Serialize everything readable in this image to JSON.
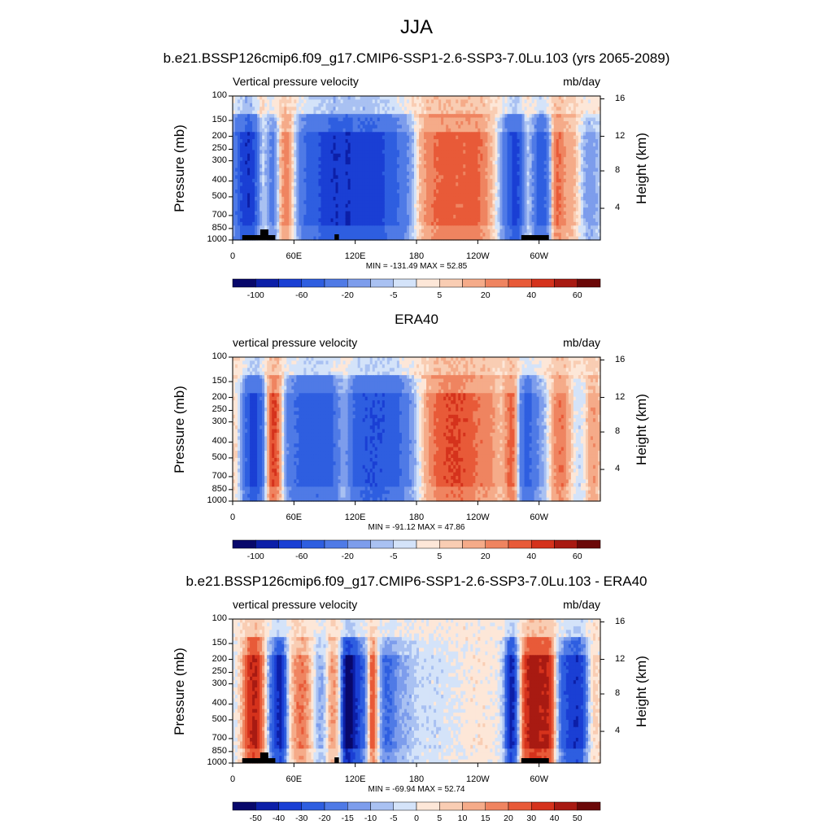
{
  "main_title": "JJA",
  "chart_data": [
    {
      "type": "heatmap",
      "title": "b.e21.BSSP126cmip6.f09_g17.CMIP6-SSP1-2.6-SSP3-7.0Lu.103 (yrs 2065-2089)",
      "left_string": "Vertical pressure velocity",
      "units": "mb/day",
      "ylabel": "Pressure (mb)",
      "y2label": "Height (km)",
      "pressure_ticks": [
        "100",
        "150",
        "200",
        "250",
        "300",
        "400",
        "500",
        "700",
        "850",
        "1000"
      ],
      "height_ticks": [
        "4",
        "8",
        "12",
        "16"
      ],
      "x_ticks": [
        "0",
        "60E",
        "120E",
        "180",
        "120W",
        "60W"
      ],
      "min_max": "MIN = -131.49  MAX =  52.85",
      "colorbar_labels": [
        "-100",
        "-60",
        "-20",
        "-5",
        "5",
        "20",
        "40",
        "60"
      ],
      "approx_columns": [
        [
          5,
          -30
        ],
        [
          15,
          -60
        ],
        [
          25,
          30
        ],
        [
          35,
          -40
        ],
        [
          45,
          40
        ],
        [
          55,
          -10
        ],
        [
          75,
          -5
        ],
        [
          85,
          -5
        ],
        [
          95,
          -10
        ],
        [
          105,
          -15
        ],
        [
          115,
          -20
        ],
        [
          125,
          -40
        ],
        [
          135,
          -40
        ],
        [
          145,
          -50
        ],
        [
          155,
          -40
        ],
        [
          165,
          -30
        ],
        [
          175,
          -20
        ],
        [
          185,
          10
        ],
        [
          195,
          20
        ],
        [
          205,
          20
        ],
        [
          215,
          30
        ],
        [
          225,
          30
        ],
        [
          235,
          30
        ],
        [
          245,
          20
        ],
        [
          255,
          10
        ],
        [
          265,
          -10
        ],
        [
          275,
          -60
        ],
        [
          285,
          -50
        ],
        [
          295,
          20
        ],
        [
          305,
          10
        ],
        [
          315,
          30
        ],
        [
          325,
          5
        ],
        [
          335,
          5
        ],
        [
          345,
          5
        ],
        [
          355,
          -20
        ]
      ]
    },
    {
      "type": "heatmap",
      "title": "ERA40",
      "left_string": "vertical pressure velocity",
      "units": "mb/day",
      "ylabel": "Pressure (mb)",
      "y2label": "Height (km)",
      "pressure_ticks": [
        "100",
        "150",
        "200",
        "250",
        "300",
        "400",
        "500",
        "700",
        "850",
        "1000"
      ],
      "height_ticks": [
        "4",
        "8",
        "12",
        "16"
      ],
      "x_ticks": [
        "0",
        "60E",
        "120E",
        "180",
        "120W",
        "60W"
      ],
      "min_max": "MIN = -91.12  MAX =  47.86",
      "colorbar_labels": [
        "-100",
        "-60",
        "-20",
        "-5",
        "5",
        "20",
        "40",
        "60"
      ]
    },
    {
      "type": "heatmap",
      "title": "b.e21.BSSP126cmip6.f09_g17.CMIP6-SSP1-2.6-SSP3-7.0Lu.103 - ERA40",
      "left_string": "vertical pressure velocity",
      "units": "mb/day",
      "ylabel": "Pressure (mb)",
      "y2label": "Height (km)",
      "pressure_ticks": [
        "100",
        "150",
        "200",
        "250",
        "300",
        "400",
        "500",
        "700",
        "850",
        "1000"
      ],
      "height_ticks": [
        "4",
        "8",
        "12",
        "16"
      ],
      "x_ticks": [
        "0",
        "60E",
        "120E",
        "180",
        "120W",
        "60W"
      ],
      "min_max": "MIN = -69.94  MAX =  52.74",
      "colorbar_labels": [
        "-50",
        "-40",
        "-30",
        "-20",
        "-15",
        "-10",
        "-5",
        "0",
        "5",
        "10",
        "15",
        "20",
        "30",
        "40",
        "50"
      ]
    }
  ],
  "colors": {
    "palette": [
      "#08086b",
      "#0c1fa8",
      "#1a3fd4",
      "#2e5ee0",
      "#4f7ae6",
      "#7d9dec",
      "#a9c1f2",
      "#d4e3f9",
      "#fde7d8",
      "#f9cdb3",
      "#f5ab89",
      "#ef8460",
      "#e85a38",
      "#d5321c",
      "#a81a12",
      "#6b0808"
    ],
    "diff_palette": [
      "#08086b",
      "#0c1fa8",
      "#1a3fd4",
      "#2e5ee0",
      "#4f7ae6",
      "#7d9dec",
      "#a9c1f2",
      "#d4e3f9",
      "#fde7d8",
      "#f9cdb3",
      "#f5ab89",
      "#ef8460",
      "#e85a38",
      "#d5321c",
      "#a81a12",
      "#6b0808"
    ],
    "terrain": "#000000"
  }
}
